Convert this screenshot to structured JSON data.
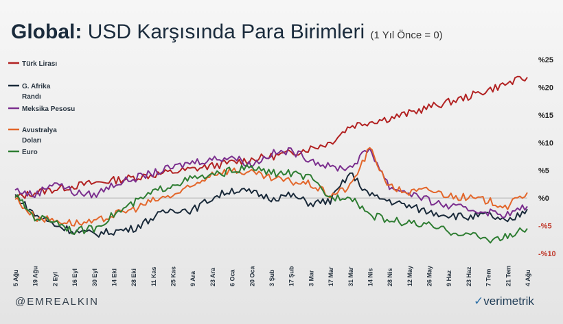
{
  "title": {
    "bold": "Global:",
    "main": "USD Karşısında Para Birimleri",
    "note": "(1 Yıl Önce = 0)"
  },
  "footer": {
    "handle": "@EMREALKIN",
    "brand": "verimetrik"
  },
  "chart_data": {
    "type": "line",
    "y_tick_labels": [
      "%25",
      "%20",
      "%15",
      "%10",
      "%5",
      "%0",
      "-%5",
      "-%10"
    ],
    "y_tick_values": [
      25,
      20,
      15,
      10,
      5,
      0,
      -5,
      -10
    ],
    "negative_tick_color": "#c0392b",
    "ylim": [
      -10,
      25
    ],
    "x_tick_labels": [
      "5 Ağu",
      "19 Ağu",
      "2 Eyl",
      "16 Eyl",
      "30 Eyl",
      "14 Eki",
      "28 Eki",
      "11 Kas",
      "25 Kas",
      "9 Ara",
      "23 Ara",
      "6 Oca",
      "20 Oca",
      "3 Şub",
      "17 Şub",
      "3 Mar",
      "17 Mar",
      "31 Mar",
      "14 Nis",
      "28 Nis",
      "12 May",
      "26 May",
      "9 Haz",
      "23 Haz",
      "7 Tem",
      "21 Tem",
      "4 Ağu"
    ],
    "grid": false,
    "legend_position": "left",
    "series": [
      {
        "name": "Türk Lirası",
        "color": "#b22222",
        "values": [
          0.0,
          1.0,
          1.6,
          2.2,
          2.7,
          3.2,
          3.7,
          4.2,
          4.7,
          5.2,
          5.8,
          6.4,
          7.0,
          7.5,
          8.1,
          9.0,
          10.0,
          13.0,
          13.8,
          14.4,
          15.3,
          16.4,
          17.3,
          18.3,
          19.5,
          20.7,
          21.8
        ]
      },
      {
        "name": "G. Afrika Randı",
        "color": "#1a2a3a",
        "values": [
          0.5,
          -3.0,
          -4.8,
          -6.0,
          -6.5,
          -6.0,
          -5.5,
          -3.5,
          -2.0,
          -2.2,
          0.0,
          1.5,
          1.0,
          0.0,
          0.5,
          -1.0,
          -0.5,
          4.5,
          0.5,
          -0.5,
          -1.5,
          -2.5,
          -3.0,
          -3.5,
          -3.0,
          -4.5,
          -2.0
        ]
      },
      {
        "name": "Meksika Pesosu",
        "color": "#7b2f8e",
        "values": [
          1.5,
          0.5,
          3.0,
          1.0,
          0.5,
          2.5,
          3.5,
          4.5,
          5.5,
          6.5,
          7.0,
          7.5,
          6.0,
          8.0,
          8.5,
          7.0,
          5.5,
          5.5,
          9.0,
          2.0,
          1.0,
          -0.5,
          -1.5,
          -2.0,
          -2.5,
          -3.0,
          -1.5
        ]
      },
      {
        "name": "Avustralya Doları",
        "color": "#e3662a",
        "values": [
          0.0,
          -3.5,
          -4.0,
          -4.5,
          -4.5,
          -3.0,
          -2.0,
          -0.5,
          0.5,
          2.0,
          4.5,
          5.0,
          4.5,
          3.5,
          3.0,
          2.5,
          0.5,
          2.0,
          9.0,
          2.0,
          1.0,
          1.5,
          0.5,
          0.0,
          -0.5,
          -1.5,
          1.0
        ]
      },
      {
        "name": "Euro",
        "color": "#2e7d32",
        "values": [
          0.5,
          -3.5,
          -4.0,
          -6.0,
          -5.5,
          -3.0,
          -1.0,
          1.0,
          2.5,
          3.5,
          4.0,
          5.0,
          5.5,
          4.5,
          4.5,
          3.5,
          0.0,
          0.5,
          -3.0,
          -4.0,
          -4.5,
          -5.0,
          -6.0,
          -6.5,
          -7.5,
          -7.0,
          -5.5
        ]
      }
    ]
  }
}
